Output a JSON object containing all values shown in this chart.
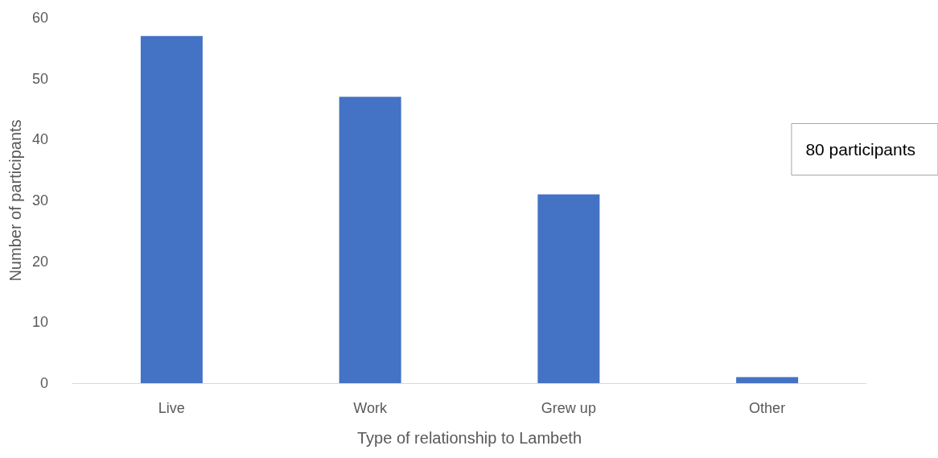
{
  "chart_data": {
    "type": "bar",
    "xlabel": "Type of relationship to Lambeth",
    "ylabel": "Number of participants",
    "categories": [
      "Live",
      "Work",
      "Grew up",
      "Other"
    ],
    "values": [
      57,
      47,
      31,
      1
    ],
    "color": "#4472c4",
    "ylim": [
      0,
      60
    ],
    "yticks": [
      0,
      10,
      20,
      30,
      40,
      50,
      60
    ],
    "grid": false,
    "annotations": [
      "80 participants"
    ]
  }
}
